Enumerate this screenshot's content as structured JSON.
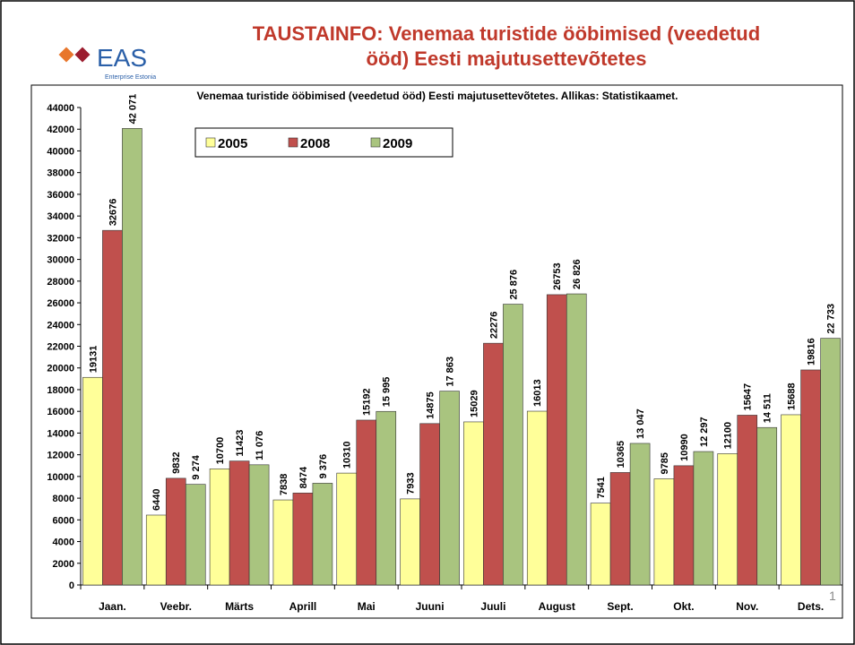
{
  "slide": {
    "title": "TAUSTAINFO: Venemaa turistide ööbimised (veedetud ööd) Eesti majutusettevõtetes",
    "logo_text": "EAS",
    "logo_subtitle": "Enterprise Estonia",
    "page_number": "1"
  },
  "chart_data": {
    "type": "bar",
    "title": "Venemaa turistide ööbimised (veedetud ööd) Eesti majutusettevõtetes. Allikas: Statistikaamet.",
    "categories": [
      "Jaan.",
      "Veebr.",
      "Märts",
      "Aprill",
      "Mai",
      "Juuni",
      "Juuli",
      "August",
      "Sept.",
      "Okt.",
      "Nov.",
      "Dets."
    ],
    "series": [
      {
        "name": "2005",
        "color": "#ffff99",
        "values": [
          19131,
          6440,
          10700,
          7838,
          10310,
          7933,
          15029,
          16013,
          7541,
          9785,
          12100,
          15688
        ]
      },
      {
        "name": "2008",
        "color": "#c0504d",
        "values": [
          32676,
          9832,
          11423,
          8474,
          15192,
          14875,
          22276,
          26753,
          10365,
          10990,
          15647,
          19816
        ]
      },
      {
        "name": "2009",
        "color": "#a9c47f",
        "values": [
          42071,
          9274,
          11076,
          9376,
          15995,
          17863,
          25876,
          26826,
          13047,
          12297,
          14511,
          22733
        ],
        "value_labels": [
          "42 071",
          "9 274",
          "11 076",
          "9 376",
          "15 995",
          "17 863",
          "25 876",
          "26 826",
          "13 047",
          "12 297",
          "14 511",
          "22 733"
        ]
      }
    ],
    "ylim": [
      0,
      44000
    ],
    "yticks": [
      0,
      2000,
      4000,
      6000,
      8000,
      10000,
      12000,
      14000,
      16000,
      18000,
      20000,
      22000,
      24000,
      26000,
      28000,
      30000,
      32000,
      34000,
      36000,
      38000,
      40000,
      42000,
      44000
    ],
    "grid": false,
    "legend": "top-left"
  }
}
